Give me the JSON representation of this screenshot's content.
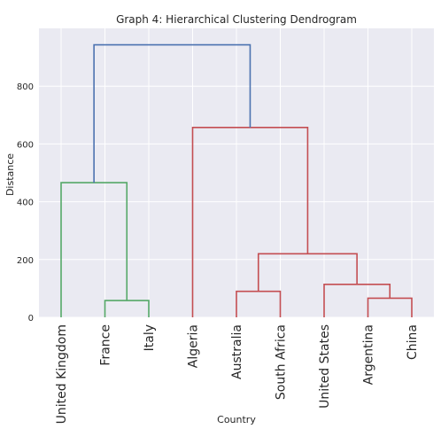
{
  "chart_data": {
    "type": "dendrogram",
    "title": "Graph 4: Hierarchical Clustering Dendrogram",
    "xlabel": "Country",
    "ylabel": "Distance",
    "ylim": [
      0,
      1000
    ],
    "yticks": [
      0,
      200,
      400,
      600,
      800
    ],
    "grid": true,
    "leaves": [
      "United Kingdom",
      "France",
      "Italy",
      "Algeria",
      "Australia",
      "South Africa",
      "United States",
      "Argentina",
      "China"
    ],
    "merges": [
      {
        "left": "France",
        "right": "Italy",
        "height": 58,
        "color": "#55a868"
      },
      {
        "left": "United Kingdom",
        "right": "France+Italy",
        "height": 466,
        "color": "#55a868"
      },
      {
        "left": "Australia",
        "right": "South Africa",
        "height": 90,
        "color": "#c44e52"
      },
      {
        "left": "Argentina",
        "right": "China",
        "height": 66,
        "color": "#c44e52"
      },
      {
        "left": "United States",
        "right": "Argentina+China",
        "height": 114,
        "color": "#c44e52"
      },
      {
        "left": "Australia+South Africa",
        "right": "United States+Argentina+China",
        "height": 220,
        "color": "#c44e52"
      },
      {
        "left": "Algeria",
        "right": "Australia+South Africa+United States+Argentina+China",
        "height": 657,
        "color": "#c44e52"
      },
      {
        "left": "United Kingdom+France+Italy",
        "right": "Algeria+Australia+South Africa+United States+Argentina+China",
        "height": 943,
        "color": "#4c72b0"
      }
    ]
  }
}
